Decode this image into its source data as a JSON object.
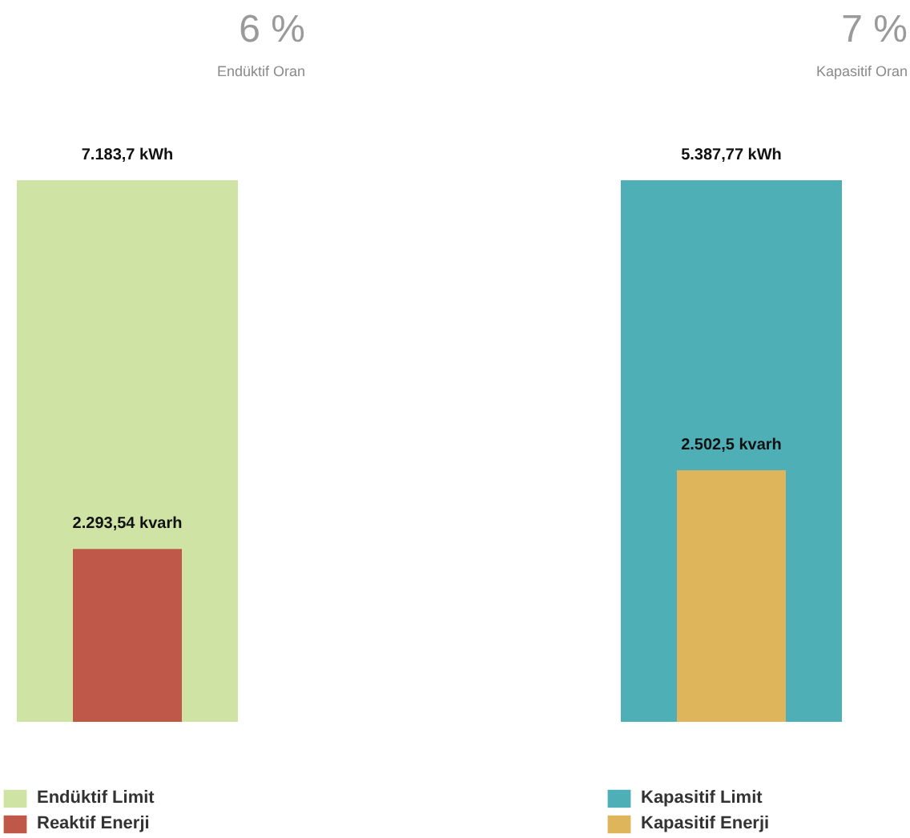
{
  "chart_data": [
    {
      "type": "bar",
      "title": "6 %",
      "subtitle": "Endüktif Oran",
      "categories": [
        null
      ],
      "legend": "bottom left",
      "series": [
        {
          "name": "Endüktif Limit",
          "color": "#cfe3a4",
          "values": [
            7183.7
          ],
          "value_labels": [
            "7.183,7 kWh"
          ]
        },
        {
          "name": "Reaktif Enerji",
          "color": "#c0584a",
          "values": [
            2293.54
          ],
          "value_labels": [
            "2.293,54 kvarh"
          ]
        }
      ]
    },
    {
      "type": "bar",
      "title": "7 %",
      "subtitle": "Kapasitif Oran",
      "categories": [
        null
      ],
      "legend": "bottom left",
      "series": [
        {
          "name": "Kapasitif Limit",
          "color": "#4eb0b6",
          "values": [
            5387.77
          ],
          "value_labels": [
            "5.387,77 kWh"
          ]
        },
        {
          "name": "Kapasitif Enerji",
          "color": "#dfb55c",
          "values": [
            2502.5
          ],
          "value_labels": [
            "2.502,5 kvarh"
          ]
        }
      ]
    }
  ]
}
